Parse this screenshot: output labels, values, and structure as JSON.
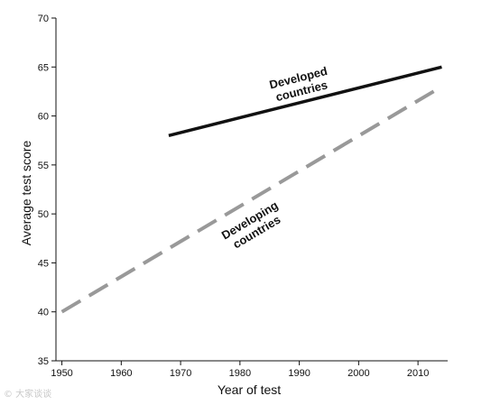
{
  "chart_data": {
    "type": "line",
    "title": "",
    "xlabel": "Year of test",
    "ylabel": "Average test score",
    "xlim": [
      1949,
      2015
    ],
    "ylim": [
      35,
      70
    ],
    "xticks": [
      1950,
      1960,
      1970,
      1980,
      1990,
      2000,
      2010
    ],
    "yticks": [
      35,
      40,
      45,
      50,
      55,
      60,
      65,
      70
    ],
    "grid": false,
    "series": [
      {
        "name": "Developed countries",
        "style": "solid",
        "color": "#111111",
        "x": [
          1968,
          2014
        ],
        "y": [
          58,
          65
        ]
      },
      {
        "name": "Developing countries",
        "style": "dashed",
        "color": "#999999",
        "x": [
          1950,
          2014
        ],
        "y": [
          40,
          63
        ]
      }
    ],
    "annotations": [
      {
        "lines": [
          "Developed",
          "countries"
        ],
        "x": 1990,
        "y": 63.5
      },
      {
        "lines": [
          "Developing",
          "countries"
        ],
        "x": 1982,
        "y": 49
      }
    ]
  },
  "watermark": "© 大家谈谈"
}
